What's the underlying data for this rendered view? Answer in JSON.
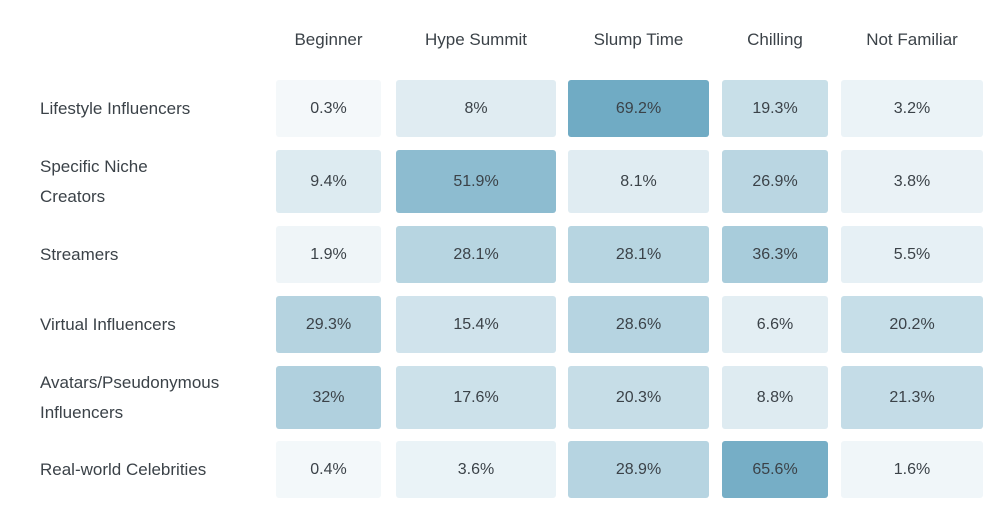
{
  "chart_data": {
    "type": "heatmap",
    "columns": [
      "Beginner",
      "Hype Summit",
      "Slump Time",
      "Chilling",
      "Not Familiar"
    ],
    "rows": [
      {
        "label": "Lifestyle Influencers",
        "values": [
          0.3,
          8,
          69.2,
          19.3,
          3.2
        ],
        "labels": [
          "0.3%",
          "8%",
          "69.2%",
          "19.3%",
          "3.2%"
        ]
      },
      {
        "label": "Specific Niche Creators",
        "values": [
          9.4,
          51.9,
          8.1,
          26.9,
          3.8
        ],
        "labels": [
          "9.4%",
          "51.9%",
          "8.1%",
          "26.9%",
          "3.8%"
        ]
      },
      {
        "label": "Streamers",
        "values": [
          1.9,
          28.1,
          28.1,
          36.3,
          5.5
        ],
        "labels": [
          "1.9%",
          "28.1%",
          "28.1%",
          "36.3%",
          "5.5%"
        ]
      },
      {
        "label": "Virtual Influencers",
        "values": [
          29.3,
          15.4,
          28.6,
          6.6,
          20.2
        ],
        "labels": [
          "29.3%",
          "15.4%",
          "28.6%",
          "6.6%",
          "20.2%"
        ]
      },
      {
        "label": "Avatars/Pseudonymous Influencers",
        "values": [
          32,
          17.6,
          20.3,
          8.8,
          21.3
        ],
        "labels": [
          "32%",
          "17.6%",
          "20.3%",
          "8.8%",
          "21.3%"
        ]
      },
      {
        "label": "Real-world Celebrities",
        "values": [
          0.4,
          3.6,
          28.9,
          65.6,
          1.6
        ],
        "labels": [
          "0.4%",
          "3.6%",
          "28.9%",
          "65.6%",
          "1.6%"
        ]
      }
    ],
    "color_low": "#f5f9fb",
    "color_high": "#6faac3",
    "value_range": [
      0,
      70
    ],
    "unit": "%"
  }
}
